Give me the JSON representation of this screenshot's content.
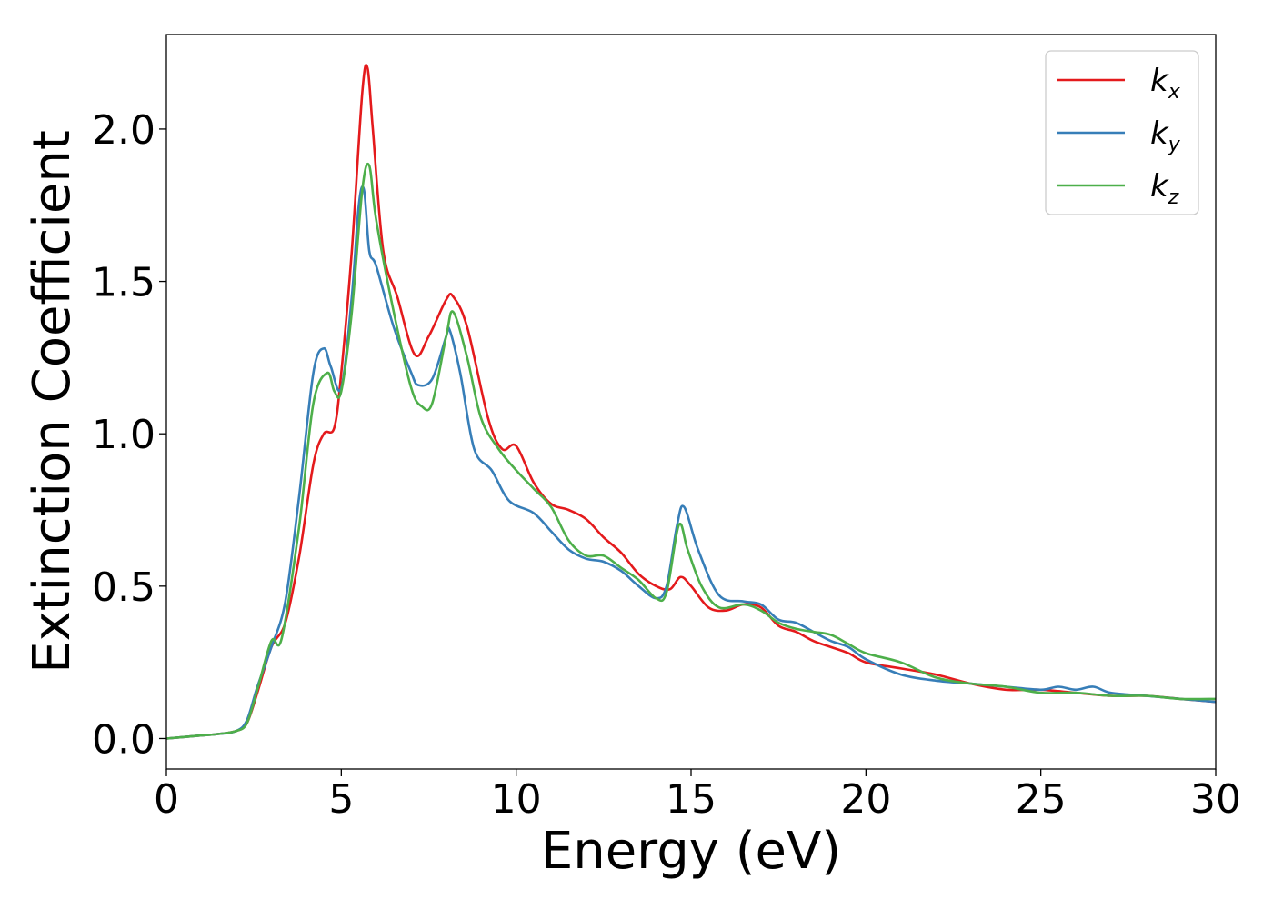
{
  "chart_data": {
    "type": "line",
    "xlabel": "Energy (eV)",
    "ylabel": "Extinction Coefficient",
    "xlim": [
      0,
      30
    ],
    "ylim": [
      -0.1,
      2.31
    ],
    "xticks": [
      0,
      5,
      10,
      15,
      20,
      25,
      30
    ],
    "xtick_labels": [
      "0",
      "5",
      "10",
      "15",
      "20",
      "25",
      "30"
    ],
    "yticks": [
      0.0,
      0.5,
      1.0,
      1.5,
      2.0
    ],
    "ytick_labels": [
      "0.0",
      "0.5",
      "1.0",
      "1.5",
      "2.0"
    ],
    "grid": false,
    "legend_position": "top-right",
    "series": [
      {
        "name": "k",
        "subscript": "x",
        "color": "#e41a1c",
        "x": [
          0,
          1,
          1.5,
          2,
          2.3,
          2.6,
          3.0,
          3.4,
          3.8,
          4.2,
          4.5,
          4.8,
          5.0,
          5.3,
          5.6,
          5.75,
          5.9,
          6.2,
          6.6,
          7.1,
          7.5,
          8.0,
          8.2,
          8.6,
          9.2,
          9.6,
          10.0,
          10.5,
          11.0,
          11.5,
          12.0,
          12.5,
          13.0,
          13.5,
          14.0,
          14.4,
          14.7,
          15.0,
          15.5,
          16.0,
          16.5,
          17.0,
          17.5,
          18.0,
          18.5,
          19.0,
          19.5,
          20.0,
          21.0,
          22.0,
          23.0,
          24.0,
          25.0,
          26.0,
          27.0,
          28.0,
          29.0,
          30.0
        ],
        "y": [
          0.0,
          0.01,
          0.015,
          0.025,
          0.05,
          0.15,
          0.3,
          0.38,
          0.6,
          0.9,
          1.0,
          1.02,
          1.2,
          1.6,
          2.12,
          2.2,
          2.0,
          1.6,
          1.45,
          1.26,
          1.32,
          1.44,
          1.45,
          1.35,
          1.05,
          0.95,
          0.96,
          0.84,
          0.77,
          0.75,
          0.72,
          0.66,
          0.61,
          0.54,
          0.5,
          0.49,
          0.53,
          0.5,
          0.43,
          0.42,
          0.44,
          0.43,
          0.37,
          0.35,
          0.32,
          0.3,
          0.28,
          0.25,
          0.23,
          0.21,
          0.18,
          0.16,
          0.16,
          0.15,
          0.14,
          0.14,
          0.13,
          0.12
        ]
      },
      {
        "name": "k",
        "subscript": "y",
        "color": "#377eb8",
        "x": [
          0,
          1,
          1.5,
          2,
          2.3,
          2.6,
          3.0,
          3.4,
          3.8,
          4.2,
          4.5,
          4.7,
          5.0,
          5.3,
          5.5,
          5.65,
          5.8,
          6.0,
          6.5,
          7.0,
          7.2,
          7.6,
          8.0,
          8.1,
          8.4,
          8.8,
          9.3,
          9.8,
          10.5,
          11.0,
          11.5,
          12.0,
          12.5,
          13.0,
          13.5,
          14.0,
          14.3,
          14.6,
          14.8,
          15.2,
          15.8,
          16.5,
          17.0,
          17.5,
          18.0,
          18.5,
          19.0,
          19.5,
          20.0,
          21.0,
          22.0,
          23.0,
          24.0,
          25.0,
          25.5,
          26.0,
          26.5,
          27.0,
          28.0,
          29.0,
          30.0
        ],
        "y": [
          0.0,
          0.01,
          0.015,
          0.025,
          0.06,
          0.17,
          0.3,
          0.45,
          0.8,
          1.2,
          1.28,
          1.22,
          1.15,
          1.45,
          1.75,
          1.8,
          1.6,
          1.55,
          1.35,
          1.2,
          1.16,
          1.18,
          1.32,
          1.34,
          1.2,
          0.95,
          0.88,
          0.78,
          0.74,
          0.68,
          0.62,
          0.59,
          0.58,
          0.55,
          0.5,
          0.46,
          0.5,
          0.7,
          0.76,
          0.62,
          0.47,
          0.45,
          0.44,
          0.39,
          0.38,
          0.35,
          0.32,
          0.3,
          0.26,
          0.21,
          0.19,
          0.18,
          0.17,
          0.16,
          0.17,
          0.16,
          0.17,
          0.15,
          0.14,
          0.13,
          0.12
        ]
      },
      {
        "name": "k",
        "subscript": "z",
        "color": "#4daf4a",
        "x": [
          0,
          1,
          1.5,
          2,
          2.3,
          2.6,
          3.0,
          3.3,
          3.8,
          4.2,
          4.6,
          4.8,
          5.0,
          5.3,
          5.6,
          5.8,
          6.0,
          6.5,
          7.0,
          7.3,
          7.6,
          8.0,
          8.2,
          8.6,
          9.0,
          9.5,
          10.0,
          10.5,
          11.0,
          11.5,
          12.0,
          12.5,
          13.0,
          13.5,
          14.0,
          14.3,
          14.65,
          14.9,
          15.3,
          15.8,
          16.5,
          17.0,
          17.5,
          18.0,
          18.5,
          19.0,
          19.5,
          20.0,
          21.0,
          22.0,
          23.0,
          24.0,
          25.0,
          26.0,
          27.0,
          28.0,
          29.0,
          30.0
        ],
        "y": [
          0.0,
          0.01,
          0.015,
          0.025,
          0.05,
          0.16,
          0.32,
          0.33,
          0.7,
          1.1,
          1.2,
          1.14,
          1.14,
          1.4,
          1.8,
          1.88,
          1.7,
          1.4,
          1.15,
          1.09,
          1.1,
          1.32,
          1.4,
          1.25,
          1.05,
          0.95,
          0.88,
          0.82,
          0.76,
          0.65,
          0.6,
          0.6,
          0.56,
          0.52,
          0.46,
          0.48,
          0.7,
          0.62,
          0.5,
          0.43,
          0.44,
          0.42,
          0.38,
          0.36,
          0.35,
          0.34,
          0.31,
          0.28,
          0.25,
          0.2,
          0.18,
          0.17,
          0.15,
          0.15,
          0.14,
          0.14,
          0.13,
          0.13
        ]
      }
    ]
  }
}
